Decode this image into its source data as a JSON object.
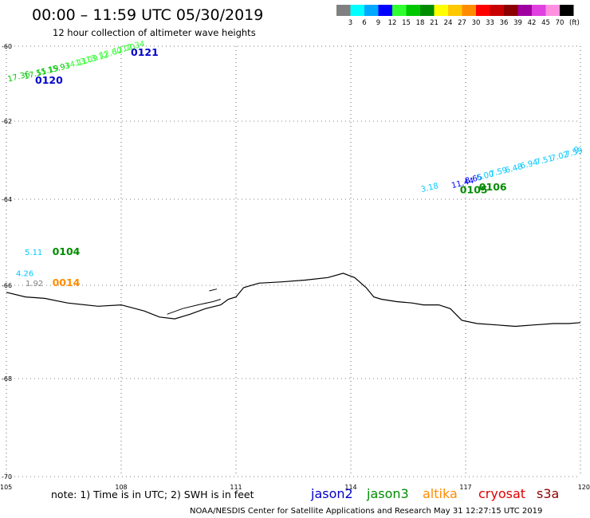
{
  "header": {
    "title": "00:00 – 11:59 UTC 05/30/2019",
    "subtitle": "12 hour collection of altimeter wave heights"
  },
  "colorbar": {
    "unit": "(ft)",
    "bins": [
      {
        "label": "3",
        "color": "#808080"
      },
      {
        "label": "6",
        "color": "#00ffff"
      },
      {
        "label": "9",
        "color": "#00a8ff"
      },
      {
        "label": "12",
        "color": "#0000ff"
      },
      {
        "label": "15",
        "color": "#30ff30"
      },
      {
        "label": "18",
        "color": "#00c800"
      },
      {
        "label": "21",
        "color": "#008c00"
      },
      {
        "label": "24",
        "color": "#ffff00"
      },
      {
        "label": "27",
        "color": "#ffc800"
      },
      {
        "label": "30",
        "color": "#ff8c00"
      },
      {
        "label": "33",
        "color": "#ff0000"
      },
      {
        "label": "36",
        "color": "#c80000"
      },
      {
        "label": "39",
        "color": "#8c0000"
      },
      {
        "label": "42",
        "color": "#a000a0"
      },
      {
        "label": "45",
        "color": "#e040e0"
      },
      {
        "label": "70",
        "color": "#ff90e0"
      },
      {
        "label": "",
        "color": "#000000"
      }
    ]
  },
  "map": {
    "lon_range": [
      105,
      120
    ],
    "lat_range": [
      -70,
      -60
    ],
    "lon_labels": [
      "105",
      "108",
      "111",
      "114",
      "117",
      "120"
    ],
    "lat_labels": [
      "-60",
      "-62",
      "-64",
      "-66",
      "-68",
      "-70"
    ],
    "grid": "dotted",
    "coastline": [
      [
        105,
        -66.15
      ],
      [
        105.5,
        -66.25
      ],
      [
        106,
        -66.28
      ],
      [
        106.6,
        -66.38
      ],
      [
        107.4,
        -66.45
      ],
      [
        108,
        -66.42
      ],
      [
        108.6,
        -66.55
      ],
      [
        109,
        -66.68
      ],
      [
        109.4,
        -66.72
      ],
      [
        109.8,
        -66.62
      ],
      [
        110.2,
        -66.5
      ],
      [
        110.6,
        -66.42
      ],
      [
        110.8,
        -66.3
      ],
      [
        111,
        -66.25
      ],
      [
        111.2,
        -66.05
      ],
      [
        111.6,
        -65.95
      ],
      [
        112.2,
        -65.92
      ],
      [
        112.8,
        -65.88
      ],
      [
        113.4,
        -65.82
      ],
      [
        113.8,
        -65.72
      ],
      [
        114.1,
        -65.82
      ],
      [
        114.4,
        -66.05
      ],
      [
        114.6,
        -66.25
      ],
      [
        114.8,
        -66.3
      ],
      [
        115.2,
        -66.35
      ],
      [
        115.6,
        -66.38
      ],
      [
        115.9,
        -66.42
      ],
      [
        116.3,
        -66.42
      ],
      [
        116.6,
        -66.5
      ],
      [
        116.9,
        -66.75
      ],
      [
        117.3,
        -66.82
      ],
      [
        117.8,
        -66.85
      ],
      [
        118.3,
        -66.88
      ],
      [
        118.8,
        -66.85
      ],
      [
        119.3,
        -66.82
      ],
      [
        119.7,
        -66.82
      ],
      [
        120,
        -66.8
      ]
    ],
    "coastline_islands": [
      [
        [
          109.2,
          -66.62
        ],
        [
          109.6,
          -66.5
        ],
        [
          110,
          -66.42
        ],
        [
          110.4,
          -66.35
        ],
        [
          110.6,
          -66.3
        ]
      ],
      [
        [
          110.3,
          -66.12
        ],
        [
          110.5,
          -66.08
        ]
      ]
    ]
  },
  "observations": {
    "track1": [
      {
        "value": "17.36",
        "lon": 105.05,
        "lat": -60.95,
        "color": "#00c800"
      },
      {
        "value": "17.51",
        "lon": 105.48,
        "lat": -60.88,
        "color": "#00c800"
      },
      {
        "value": "15.19",
        "lon": 105.8,
        "lat": -60.79,
        "color": "#00c800"
      },
      {
        "value": "15.93",
        "lon": 106.1,
        "lat": -60.72,
        "color": "#00c800"
      },
      {
        "value": "14.11",
        "lon": 106.55,
        "lat": -60.6,
        "color": "#30ff30"
      },
      {
        "value": "13.09",
        "lon": 106.82,
        "lat": -60.52,
        "color": "#30ff30"
      },
      {
        "value": "13.12",
        "lon": 107.1,
        "lat": -60.44,
        "color": "#30ff30"
      },
      {
        "value": "12.60",
        "lon": 107.45,
        "lat": -60.32,
        "color": "#30ff30"
      },
      {
        "value": "12.70",
        "lon": 107.8,
        "lat": -60.22,
        "color": "#30ff30"
      },
      {
        "value": "12.34",
        "lon": 108.05,
        "lat": -60.14,
        "color": "#30ff30"
      }
    ],
    "track1_ids": [
      {
        "id": "0120",
        "lon": 105.75,
        "lat": -61.0,
        "color": "#0000cc"
      },
      {
        "id": "0121",
        "lon": 108.25,
        "lat": -60.25,
        "color": "#0000cc"
      }
    ],
    "track2": [
      {
        "value": "3.18",
        "lon": 115.85,
        "lat": -63.82,
        "color": "#00c8ff"
      },
      {
        "value": "11.44",
        "lon": 116.65,
        "lat": -63.72,
        "color": "#0000ff"
      },
      {
        "value": "8.65",
        "lon": 117.0,
        "lat": -63.6,
        "color": "#0000ff"
      },
      {
        "value": "6.00",
        "lon": 117.3,
        "lat": -63.52,
        "color": "#00c8ff"
      },
      {
        "value": "7.59",
        "lon": 117.65,
        "lat": -63.42,
        "color": "#00c8ff"
      },
      {
        "value": "6.48",
        "lon": 118.05,
        "lat": -63.33,
        "color": "#00c8ff"
      },
      {
        "value": "6.94",
        "lon": 118.45,
        "lat": -63.22,
        "color": "#00c8ff"
      },
      {
        "value": "7.51",
        "lon": 118.85,
        "lat": -63.12,
        "color": "#00c8ff"
      },
      {
        "value": "7.02",
        "lon": 119.25,
        "lat": -63.02,
        "color": "#00c8ff"
      },
      {
        "value": "7.59",
        "lon": 119.62,
        "lat": -62.92,
        "color": "#00c8ff"
      },
      {
        "value": "9",
        "lon": 119.85,
        "lat": -62.82,
        "color": "#00c8ff"
      }
    ],
    "track2_ids": [
      {
        "id": "0105",
        "lon": 116.85,
        "lat": -63.85,
        "color": "#008c00"
      },
      {
        "id": "0106",
        "lon": 117.35,
        "lat": -63.78,
        "color": "#008c00"
      }
    ],
    "west_points": [
      {
        "value": "5.11",
        "lon": 105.48,
        "lat": -65.3,
        "color": "#00c8ff"
      },
      {
        "value": "4.26",
        "lon": 105.25,
        "lat": -65.79,
        "color": "#00c8ff"
      },
      {
        "value": "1.92",
        "lon": 105.5,
        "lat": -66.02,
        "color": "#808080"
      }
    ],
    "west_ids": [
      {
        "id": "0104",
        "lon": 106.2,
        "lat": -65.3,
        "color": "#008c00"
      },
      {
        "id": "0014",
        "lon": 106.2,
        "lat": -66.02,
        "color": "#ff8c00"
      }
    ]
  },
  "footer": {
    "note": "note:  1) Time is in UTC;  2) SWH is in feet",
    "satellites": [
      {
        "name": "jason2",
        "color": "#0000cc"
      },
      {
        "name": "jason3",
        "color": "#008c00"
      },
      {
        "name": "altika",
        "color": "#ff8c00"
      },
      {
        "name": "cryosat",
        "color": "#e00000"
      },
      {
        "name": "s3a",
        "color": "#8c0000"
      }
    ],
    "credit": "NOAA/NESDIS Center for Satellite Applications and Research     May 31 12:27:15 UTC 2019"
  }
}
